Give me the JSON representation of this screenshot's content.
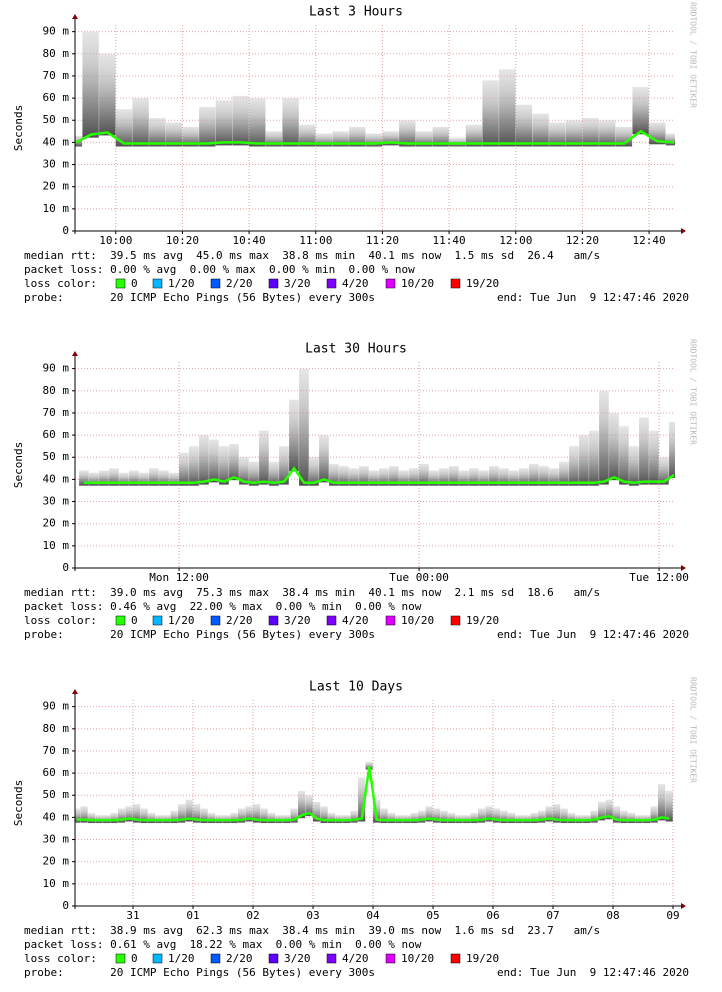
{
  "chart_data": [
    {
      "type": "line",
      "title": "Last 3 Hours",
      "y_label": "Seconds",
      "watermark": "RRDTOOL / TOBI OETIKER",
      "xlim": [
        587.77,
        767.77
      ],
      "ylim": [
        0,
        93
      ],
      "xticks": [
        {
          "value": 600,
          "label": "10:00"
        },
        {
          "value": 620,
          "label": "10:20"
        },
        {
          "value": 640,
          "label": "10:40"
        },
        {
          "value": 660,
          "label": "11:00"
        },
        {
          "value": 680,
          "label": "11:20"
        },
        {
          "value": 700,
          "label": "11:40"
        },
        {
          "value": 720,
          "label": "12:00"
        },
        {
          "value": 740,
          "label": "12:20"
        },
        {
          "value": 760,
          "label": "12:40"
        }
      ],
      "yticks": [
        0,
        {
          "value": 10,
          "label": "10 m"
        },
        {
          "value": 20,
          "label": "20 m"
        },
        {
          "value": 30,
          "label": "30 m"
        },
        {
          "value": 40,
          "label": "40 m"
        },
        {
          "value": 50,
          "label": "50 m"
        },
        {
          "value": 60,
          "label": "60 m"
        },
        {
          "value": 70,
          "label": "70 m"
        },
        {
          "value": 80,
          "label": "80 m"
        },
        {
          "value": 90,
          "label": "90 m"
        }
      ],
      "grid": true,
      "x": [
        585,
        590,
        595,
        600,
        605,
        610,
        615,
        620,
        625,
        630,
        635,
        640,
        645,
        650,
        655,
        660,
        665,
        670,
        675,
        680,
        685,
        690,
        695,
        700,
        705,
        710,
        715,
        720,
        725,
        730,
        735,
        740,
        745,
        750,
        755,
        760,
        765
      ],
      "median": {
        "color": "#26ff00",
        "values": [
          39.5,
          43.5,
          44.5,
          39.5,
          39.5,
          39.5,
          39.5,
          39.5,
          39.5,
          40,
          40,
          39.5,
          39.5,
          39.5,
          39.5,
          39.5,
          39.5,
          39.5,
          39.5,
          40,
          39.5,
          39.5,
          39.5,
          39.5,
          39.5,
          39.5,
          39.5,
          39.5,
          39.5,
          39.5,
          39.5,
          39.5,
          39.5,
          39.5,
          45,
          40.5,
          40
        ]
      },
      "smoke": {
        "color": "#555555",
        "values": [
          43,
          90,
          80,
          55,
          60,
          51,
          49,
          47,
          56,
          59,
          61,
          60,
          45,
          60,
          48,
          44,
          45,
          47,
          44,
          45,
          50,
          45,
          47,
          42,
          48,
          68,
          73,
          57,
          53,
          49,
          50,
          51,
          50,
          47,
          65,
          49,
          44
        ]
      },
      "stats": [
        "median rtt:  39.5 ms avg  45.0 ms max  38.8 ms min  40.1 ms now  1.5 ms sd  26.4   am/s",
        "packet loss: 0.00 % avg  0.00 % max  0.00 % min  0.00 % now"
      ],
      "loss_label": "loss color:",
      "loss_colors": [
        {
          "name": "0",
          "color": "#26ff00"
        },
        {
          "name": "1/20",
          "color": "#00b8ff"
        },
        {
          "name": "2/20",
          "color": "#0059ff"
        },
        {
          "name": "3/20",
          "color": "#5e00ff"
        },
        {
          "name": "4/20",
          "color": "#7e00ff"
        },
        {
          "name": "10/20",
          "color": "#dd00ff"
        },
        {
          "name": "19/20",
          "color": "#ff0000"
        }
      ],
      "probe": "probe:       20 ICMP Echo Pings (56 Bytes) every 300s",
      "end": "end: Tue Jun  9 12:47:46 2020"
    },
    {
      "type": "line",
      "title": "Last 30 Hours",
      "y_label": "Seconds",
      "watermark": "RRDTOOL / TOBI OETIKER",
      "xlim": [
        6.796,
        36.796
      ],
      "ylim": [
        0,
        93
      ],
      "xticks": [
        {
          "value": 12,
          "label": "Mon 12:00"
        },
        {
          "value": 24,
          "label": "Tue 00:00"
        },
        {
          "value": 36,
          "label": "Tue 12:00"
        }
      ],
      "yticks": [
        0,
        {
          "value": 10,
          "label": "10 m"
        },
        {
          "value": 20,
          "label": "20 m"
        },
        {
          "value": 30,
          "label": "30 m"
        },
        {
          "value": 40,
          "label": "40 m"
        },
        {
          "value": 50,
          "label": "50 m"
        },
        {
          "value": 60,
          "label": "60 m"
        },
        {
          "value": 70,
          "label": "70 m"
        },
        {
          "value": 80,
          "label": "80 m"
        },
        {
          "value": 90,
          "label": "90 m"
        }
      ],
      "grid": true,
      "x": [
        7,
        7.5,
        8,
        8.5,
        9,
        9.5,
        10,
        10.5,
        11,
        11.5,
        12,
        12.5,
        13,
        13.5,
        14,
        14.5,
        15,
        15.5,
        16,
        16.5,
        17,
        17.5,
        18,
        18.5,
        19,
        19.5,
        20,
        20.5,
        21,
        21.5,
        22,
        22.5,
        23,
        23.5,
        24,
        24.5,
        25,
        25.5,
        26,
        26.5,
        27,
        27.5,
        28,
        28.5,
        29,
        29.5,
        30,
        30.5,
        31,
        31.5,
        32,
        32.5,
        33,
        33.5,
        34,
        34.5,
        35,
        35.5,
        36,
        36.5
      ],
      "median": {
        "color": "#26ff00",
        "values": [
          38.5,
          38.5,
          38.5,
          38.5,
          38.5,
          38.5,
          38.5,
          38.5,
          38.5,
          38.5,
          38.5,
          38.5,
          39,
          40,
          39,
          41,
          39,
          38.5,
          39,
          38.5,
          39,
          45,
          38.5,
          38.5,
          40,
          38.5,
          38.5,
          38.5,
          38.5,
          38.5,
          38.5,
          38.5,
          38.5,
          38.5,
          38.5,
          38.5,
          38.5,
          38.5,
          38.5,
          38.5,
          38.5,
          38.5,
          38.5,
          38.5,
          38.5,
          38.5,
          38.5,
          38.5,
          38.5,
          38.5,
          38.5,
          38.5,
          39,
          41,
          39,
          38.5,
          39,
          39,
          39,
          42
        ]
      },
      "smoke": {
        "color": "#555555",
        "values": [
          44,
          43,
          44,
          45,
          43,
          44,
          43,
          45,
          44,
          43,
          52,
          55,
          60,
          58,
          55,
          56,
          50,
          48,
          62,
          48,
          55,
          76,
          90,
          50,
          60,
          47,
          46,
          45,
          46,
          44,
          45,
          46,
          44,
          45,
          47,
          44,
          45,
          46,
          44,
          45,
          44,
          46,
          45,
          44,
          45,
          47,
          46,
          45,
          48,
          55,
          60,
          62,
          80,
          70,
          64,
          55,
          68,
          62,
          50,
          66
        ]
      },
      "stats": [
        "median rtt:  39.0 ms avg  75.3 ms max  38.4 ms min  40.1 ms now  2.1 ms sd  18.6   am/s",
        "packet loss: 0.46 % avg  22.00 % max  0.00 % min  0.00 % now"
      ],
      "loss_label": "loss color:",
      "loss_colors": [
        {
          "name": "0",
          "color": "#26ff00"
        },
        {
          "name": "1/20",
          "color": "#00b8ff"
        },
        {
          "name": "2/20",
          "color": "#0059ff"
        },
        {
          "name": "3/20",
          "color": "#5e00ff"
        },
        {
          "name": "4/20",
          "color": "#7e00ff"
        },
        {
          "name": "10/20",
          "color": "#dd00ff"
        },
        {
          "name": "19/20",
          "color": "#ff0000"
        }
      ],
      "probe": "probe:       20 ICMP Echo Pings (56 Bytes) every 300s",
      "end": "end: Tue Jun  9 12:47:46 2020"
    },
    {
      "type": "line",
      "title": "Last 10 Days",
      "y_label": "Seconds",
      "watermark": "RRDTOOL / TOBI OETIKER",
      "xlim": [
        -0.467,
        9.533
      ],
      "ylim": [
        0,
        93
      ],
      "xticks": [
        {
          "value": 0.5,
          "label": "31"
        },
        {
          "value": 1.5,
          "label": "01"
        },
        {
          "value": 2.5,
          "label": "02"
        },
        {
          "value": 3.5,
          "label": "03"
        },
        {
          "value": 4.5,
          "label": "04"
        },
        {
          "value": 5.5,
          "label": "05"
        },
        {
          "value": 6.5,
          "label": "06"
        },
        {
          "value": 7.5,
          "label": "07"
        },
        {
          "value": 8.5,
          "label": "08"
        },
        {
          "value": 9.5,
          "label": "09"
        }
      ],
      "yticks": [
        0,
        {
          "value": 10,
          "label": "10 m"
        },
        {
          "value": 20,
          "label": "20 m"
        },
        {
          "value": 30,
          "label": "30 m"
        },
        {
          "value": 40,
          "label": "40 m"
        },
        {
          "value": 50,
          "label": "50 m"
        },
        {
          "value": 60,
          "label": "60 m"
        },
        {
          "value": 70,
          "label": "70 m"
        },
        {
          "value": 80,
          "label": "80 m"
        },
        {
          "value": 90,
          "label": "90 m"
        }
      ],
      "grid": true,
      "x": [
        -0.5,
        -0.375,
        -0.25,
        -0.125,
        0,
        0.125,
        0.25,
        0.375,
        0.5,
        0.625,
        0.75,
        0.875,
        1,
        1.125,
        1.25,
        1.375,
        1.5,
        1.625,
        1.75,
        1.875,
        2,
        2.125,
        2.25,
        2.375,
        2.5,
        2.625,
        2.75,
        2.875,
        3,
        3.125,
        3.25,
        3.375,
        3.5,
        3.625,
        3.75,
        3.875,
        4,
        4.125,
        4.25,
        4.375,
        4.5,
        4.625,
        4.75,
        4.875,
        5,
        5.125,
        5.25,
        5.375,
        5.5,
        5.625,
        5.75,
        5.875,
        6,
        6.125,
        6.25,
        6.375,
        6.5,
        6.625,
        6.75,
        6.875,
        7,
        7.125,
        7.25,
        7.375,
        7.5,
        7.625,
        7.75,
        7.875,
        8,
        8.125,
        8.25,
        8.375,
        8.5,
        8.625,
        8.75,
        8.875,
        9,
        9.125,
        9.25,
        9.375
      ],
      "median": {
        "color": "#26ff00",
        "values": [
          39,
          39,
          38.8,
          38.8,
          38.8,
          38.8,
          39,
          39.5,
          39,
          38.8,
          38.8,
          38.8,
          38.8,
          38.8,
          39,
          39.5,
          39,
          38.8,
          38.8,
          38.8,
          38.8,
          38.8,
          39,
          39.5,
          39,
          38.8,
          38.8,
          38.8,
          38.8,
          39,
          41,
          42,
          39.5,
          38.8,
          38.8,
          38.8,
          38.8,
          39,
          39.5,
          63,
          39,
          38.8,
          38.8,
          38.8,
          38.8,
          38.8,
          39,
          39.5,
          39,
          38.8,
          38.8,
          38.8,
          38.8,
          38.8,
          39,
          39.5,
          39,
          38.8,
          38.8,
          38.8,
          38.8,
          38.8,
          39,
          39.5,
          39,
          38.8,
          38.8,
          38.8,
          38.8,
          39,
          40,
          40.5,
          39,
          38.8,
          38.8,
          38.8,
          38.8,
          39,
          40,
          39.5
        ]
      },
      "smoke": {
        "color": "#555555",
        "values": [
          44,
          45,
          42,
          41,
          41,
          42,
          44,
          45,
          46,
          44,
          42,
          41,
          41,
          43,
          46,
          48,
          46,
          44,
          42,
          41,
          41,
          42,
          44,
          45,
          46,
          44,
          42,
          41,
          41,
          44,
          52,
          50,
          47,
          45,
          42,
          41,
          41,
          43,
          58,
          65,
          48,
          44,
          42,
          41,
          41,
          42,
          43,
          45,
          44,
          43,
          42,
          41,
          41,
          42,
          44,
          45,
          44,
          43,
          42,
          41,
          41,
          42,
          43,
          45,
          46,
          44,
          42,
          41,
          41,
          43,
          47,
          48,
          45,
          43,
          42,
          41,
          41,
          45,
          55,
          52
        ]
      },
      "stats": [
        "median rtt:  38.9 ms avg  62.3 ms max  38.4 ms min  39.0 ms now  1.6 ms sd  23.7   am/s",
        "packet loss: 0.61 % avg  18.22 % max  0.00 % min  0.00 % now"
      ],
      "loss_label": "loss color:",
      "loss_colors": [
        {
          "name": "0",
          "color": "#26ff00"
        },
        {
          "name": "1/20",
          "color": "#00b8ff"
        },
        {
          "name": "2/20",
          "color": "#0059ff"
        },
        {
          "name": "3/20",
          "color": "#5e00ff"
        },
        {
          "name": "4/20",
          "color": "#7e00ff"
        },
        {
          "name": "10/20",
          "color": "#dd00ff"
        },
        {
          "name": "19/20",
          "color": "#ff0000"
        }
      ],
      "probe": "probe:       20 ICMP Echo Pings (56 Bytes) every 300s",
      "end": "end: Tue Jun  9 12:47:46 2020"
    }
  ]
}
